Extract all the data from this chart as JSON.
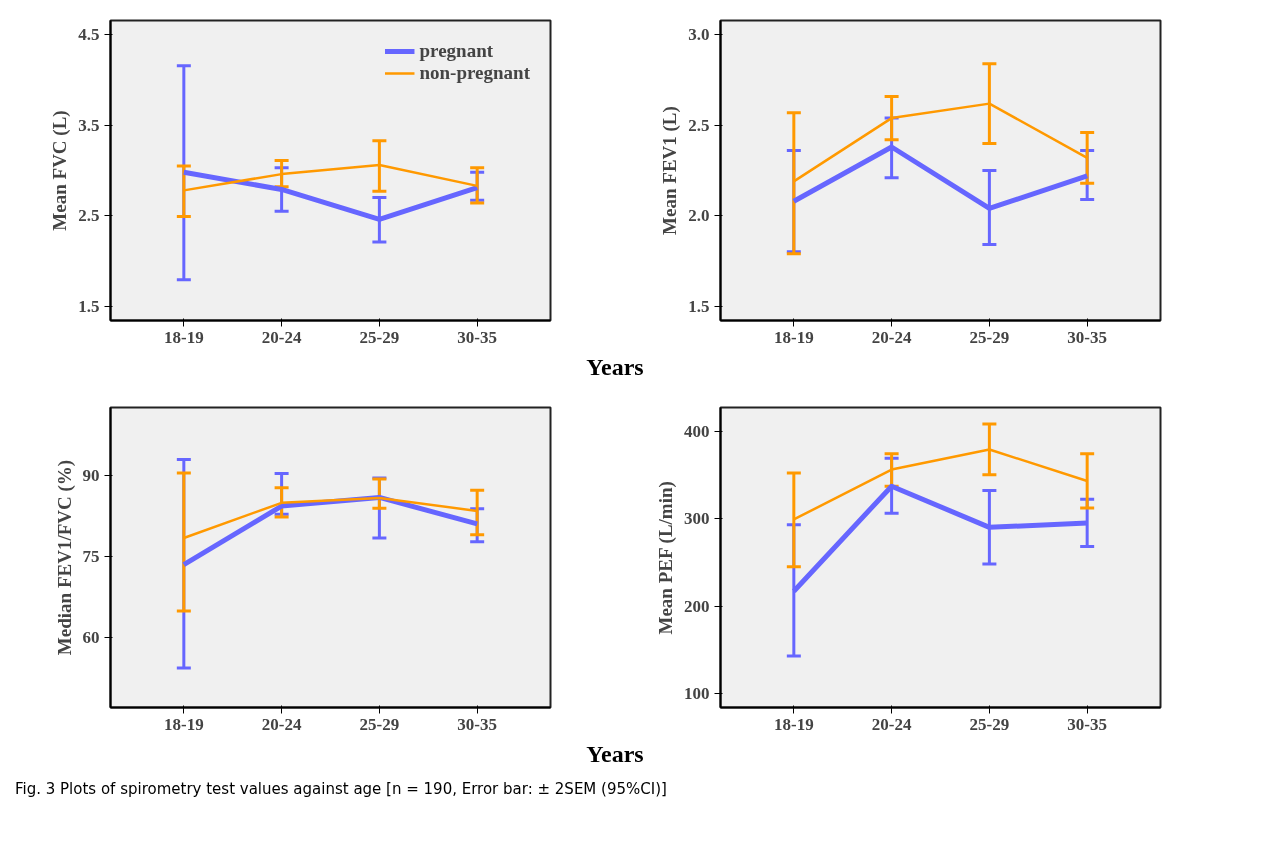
{
  "chart_data": [
    {
      "type": "line",
      "ylabel": "Mean FVC (L)",
      "xlabel": "Years",
      "categories": [
        "18-19",
        "20-24",
        "25-29",
        "30-35"
      ],
      "ylim": [
        1.34,
        4.66
      ],
      "yticks": [
        1.5,
        2.5,
        3.5,
        4.5
      ],
      "grid": false,
      "legend": "top right",
      "marker": "none",
      "line_style": "solid",
      "series": [
        {
          "name": "pregnant",
          "color": "#6666ff",
          "values": [
            2.98,
            2.79,
            2.46,
            2.81
          ],
          "errors": [
            [
              1.79,
              4.16
            ],
            [
              2.55,
              3.03
            ],
            [
              2.21,
              2.7
            ],
            [
              2.67,
              2.98
            ]
          ]
        },
        {
          "name": "non-pregnant",
          "color": "#ff9900",
          "values": [
            2.78,
            2.96,
            3.06,
            2.83
          ],
          "errors": [
            [
              2.49,
              3.05
            ],
            [
              2.82,
              3.11
            ],
            [
              2.77,
              3.33
            ],
            [
              2.64,
              3.03
            ]
          ]
        }
      ]
    },
    {
      "type": "line",
      "ylabel": "Mean FEV1 (L)",
      "categories": [
        "18-19",
        "20-24",
        "25-29",
        "30-35"
      ],
      "ylim": [
        1.42,
        3.08
      ],
      "yticks": [
        1.5,
        {
          "value": 2,
          "label": "2.0"
        },
        2.5,
        {
          "value": 3,
          "label": "3.0"
        }
      ],
      "grid": false,
      "legend": false,
      "marker": "none",
      "line_style": "solid",
      "series": [
        {
          "color": "#6666ff",
          "values": [
            2.08,
            2.38,
            2.04,
            2.22
          ],
          "errors": [
            [
              1.8,
              2.36
            ],
            [
              2.21,
              2.54
            ],
            [
              1.84,
              2.25
            ],
            [
              2.09,
              2.36
            ]
          ]
        },
        {
          "color": "#ff9900",
          "values": [
            2.19,
            2.54,
            2.62,
            2.32
          ],
          "errors": [
            [
              1.79,
              2.57
            ],
            [
              2.42,
              2.66
            ],
            [
              2.4,
              2.84
            ],
            [
              2.18,
              2.46
            ]
          ]
        }
      ]
    },
    {
      "type": "line",
      "ylabel": "Median FEV1/FVC (%)",
      "xlabel": "Years",
      "categories": [
        "18-19",
        "20-24",
        "25-29",
        "30-35"
      ],
      "ylim": [
        47.1,
        102.5
      ],
      "yticks": [
        60,
        75,
        90
      ],
      "grid": false,
      "legend": false,
      "marker": "none",
      "line_style": "solid",
      "series": [
        {
          "color": "#6666ff",
          "values": [
            73.5,
            84.3,
            85.9,
            81.0
          ],
          "errors": [
            [
              54.4,
              92.9
            ],
            [
              82.8,
              90.3
            ],
            [
              78.4,
              89.5
            ],
            [
              77.7,
              83.8
            ]
          ]
        },
        {
          "color": "#ff9900",
          "values": [
            78.4,
            84.9,
            85.8,
            83.4
          ],
          "errors": [
            [
              64.9,
              90.4
            ],
            [
              82.3,
              87.7
            ],
            [
              83.9,
              89.3
            ],
            [
              79.0,
              87.2
            ]
          ]
        }
      ]
    },
    {
      "type": "line",
      "ylabel": "Mean PEF (L/min)",
      "categories": [
        "18-19",
        "20-24",
        "25-29",
        "30-35"
      ],
      "ylim": [
        84,
        427
      ],
      "yticks": [
        100,
        200,
        300,
        400
      ],
      "grid": false,
      "legend": false,
      "marker": "none",
      "line_style": "solid",
      "annotations": [
        "Fig. 3 Plots of spirometry test values against age [n = 190, Error bar: ± 2SEM (95%CI)]"
      ],
      "series": [
        {
          "color": "#6666ff",
          "values": [
            217,
            337,
            290,
            295
          ],
          "errors": [
            [
              143,
              293
            ],
            [
              306,
              369
            ],
            [
              248,
              332
            ],
            [
              268,
              322
            ]
          ]
        },
        {
          "color": "#ff9900",
          "values": [
            299,
            356,
            379,
            343
          ],
          "errors": [
            [
              245,
              352
            ],
            [
              337,
              374
            ],
            [
              350,
              408
            ],
            [
              312,
              374
            ]
          ]
        }
      ]
    }
  ]
}
